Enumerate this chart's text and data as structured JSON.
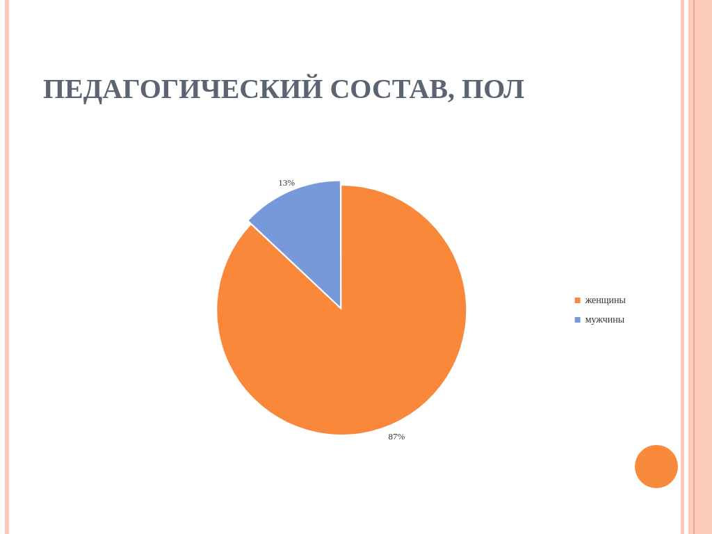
{
  "chart_data": {
    "type": "pie",
    "title": "ПЕДАГОГИЧЕСКИЙ СОСТАВ, ПОЛ",
    "categories": [
      "женщины",
      "мужчины"
    ],
    "values": [
      87,
      13
    ],
    "colors": [
      "#f9883a",
      "#7899d9"
    ],
    "value_labels": [
      "87%",
      "13%"
    ],
    "legend": "right"
  }
}
